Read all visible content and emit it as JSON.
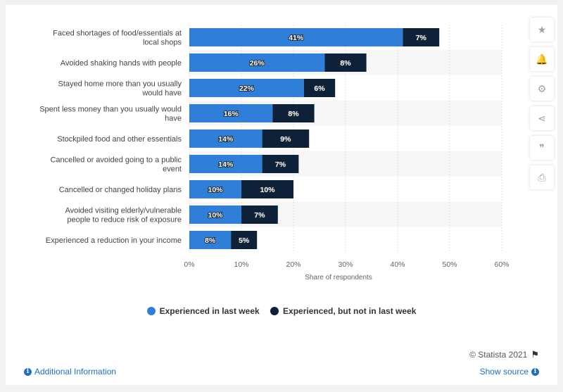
{
  "chart_data": {
    "type": "bar",
    "orientation": "horizontal",
    "stacked": true,
    "categories": [
      [
        "Faced shortages of food/essentials at",
        "local shops"
      ],
      [
        "Avoided shaking hands with people"
      ],
      [
        "Stayed home more than you usually",
        "would have"
      ],
      [
        "Spent less money than you usually would",
        "have"
      ],
      [
        "Stockpiled food and other essentials"
      ],
      [
        "Cancelled or avoided going to a public",
        "event"
      ],
      [
        "Cancelled or changed holiday plans"
      ],
      [
        "Avoided visiting elderly/vulnerable",
        "people to reduce risk of exposure"
      ],
      [
        "Experienced a reduction in your income"
      ]
    ],
    "series": [
      {
        "name": "Experienced in last week",
        "color": "#2f7ed8",
        "values": [
          41,
          26,
          22,
          16,
          14,
          14,
          10,
          10,
          8
        ]
      },
      {
        "name": "Experienced, but not in last week",
        "color": "#0d2238",
        "values": [
          7,
          8,
          6,
          8,
          9,
          7,
          10,
          7,
          5
        ]
      }
    ],
    "xlabel": "Share of respondents",
    "xlim": [
      0,
      60
    ],
    "xticks": [
      "0%",
      "10%",
      "20%",
      "30%",
      "40%",
      "50%",
      "60%"
    ],
    "value_suffix": "%",
    "grid": true,
    "legend_position": "bottom"
  },
  "legend": {
    "item1": "Experienced in last week",
    "item2": "Experienced, but not in last week",
    "color1": "#2f7ed8",
    "color2": "#0d2238"
  },
  "toolbar": [
    {
      "name": "star-icon",
      "glyph": "★"
    },
    {
      "name": "bell-icon",
      "glyph": "🔔"
    },
    {
      "name": "gear-icon",
      "glyph": "⚙"
    },
    {
      "name": "share-icon",
      "glyph": "⋖"
    },
    {
      "name": "quote-icon",
      "glyph": "❞"
    },
    {
      "name": "print-icon",
      "glyph": "⎙"
    }
  ],
  "footer": {
    "credit": "© Statista 2021",
    "additional_info": "Additional Information",
    "show_source": "Show source",
    "info_glyph": "i",
    "flag_glyph": "⚑"
  }
}
